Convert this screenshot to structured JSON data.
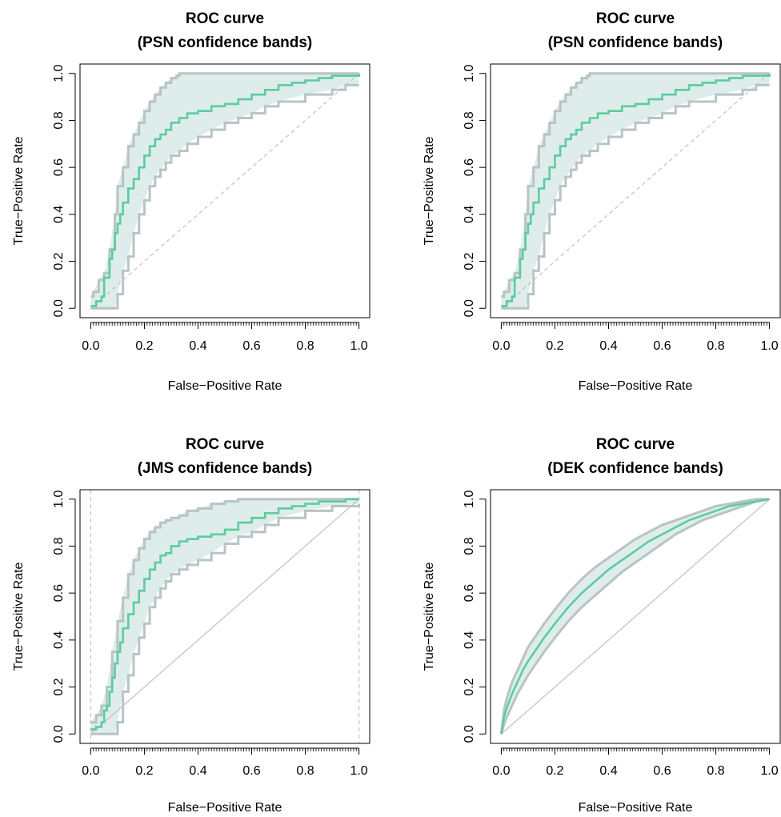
{
  "chart_data": [
    {
      "type": "line",
      "title": [
        "ROC curve",
        "(PSN confidence bands)"
      ],
      "xlabel": "False−Positive Rate",
      "ylabel": "True−Positive Rate",
      "xlim": [
        0,
        1
      ],
      "ylim": [
        0,
        1
      ],
      "xticks": [
        "0.0",
        "0.2",
        "0.4",
        "0.6",
        "0.8",
        "1.0"
      ],
      "yticks": [
        "0.0",
        "0.2",
        "0.4",
        "0.6",
        "0.8",
        "1.0"
      ],
      "diagonal_style": "dashed",
      "vertical_guides": [],
      "curve": {
        "x": [
          0,
          0.02,
          0.04,
          0.05,
          0.06,
          0.07,
          0.08,
          0.09,
          0.1,
          0.11,
          0.12,
          0.14,
          0.16,
          0.18,
          0.2,
          0.22,
          0.24,
          0.26,
          0.28,
          0.3,
          0.33,
          0.36,
          0.4,
          0.45,
          0.5,
          0.55,
          0.6,
          0.65,
          0.7,
          0.75,
          0.8,
          0.85,
          0.9,
          0.95,
          1.0
        ],
        "y": [
          0.01,
          0.03,
          0.05,
          0.13,
          0.13,
          0.21,
          0.25,
          0.32,
          0.36,
          0.4,
          0.45,
          0.51,
          0.55,
          0.6,
          0.65,
          0.69,
          0.72,
          0.74,
          0.76,
          0.79,
          0.81,
          0.83,
          0.84,
          0.86,
          0.87,
          0.89,
          0.91,
          0.93,
          0.95,
          0.96,
          0.97,
          0.98,
          0.99,
          0.99,
          1.0
        ]
      },
      "band_upper": {
        "x": [
          0,
          0.01,
          0.03,
          0.05,
          0.07,
          0.09,
          0.1,
          0.12,
          0.14,
          0.16,
          0.18,
          0.2,
          0.22,
          0.24,
          0.26,
          0.28,
          0.3,
          0.32,
          0.33,
          0.35,
          0.38,
          0.4,
          0.45,
          0.5,
          0.55,
          1.0
        ],
        "y": [
          0.05,
          0.07,
          0.12,
          0.15,
          0.25,
          0.4,
          0.52,
          0.6,
          0.69,
          0.74,
          0.79,
          0.84,
          0.88,
          0.91,
          0.94,
          0.96,
          0.98,
          0.99,
          1.0,
          1.0,
          1.0,
          1.0,
          1.0,
          1.0,
          1.0,
          1.0
        ]
      },
      "band_lower": {
        "x": [
          0,
          0.03,
          0.05,
          0.07,
          0.09,
          0.1,
          0.12,
          0.14,
          0.16,
          0.18,
          0.2,
          0.22,
          0.24,
          0.26,
          0.28,
          0.3,
          0.33,
          0.36,
          0.4,
          0.45,
          0.5,
          0.55,
          0.6,
          0.65,
          0.7,
          0.8,
          0.9,
          0.95,
          0.95,
          1.0
        ],
        "y": [
          0,
          0,
          0,
          0,
          0,
          0.06,
          0.16,
          0.22,
          0.32,
          0.4,
          0.46,
          0.52,
          0.56,
          0.59,
          0.62,
          0.65,
          0.67,
          0.7,
          0.73,
          0.76,
          0.79,
          0.81,
          0.83,
          0.86,
          0.88,
          0.91,
          0.93,
          0.95,
          0.95,
          0.95
        ]
      }
    },
    {
      "type": "line",
      "title": [
        "ROC curve",
        "(PSN confidence bands)"
      ],
      "xlabel": "False−Positive Rate",
      "ylabel": "True−Positive Rate",
      "xlim": [
        0,
        1
      ],
      "ylim": [
        0,
        1
      ],
      "xticks": [
        "0.0",
        "0.2",
        "0.4",
        "0.6",
        "0.8",
        "1.0"
      ],
      "yticks": [
        "0.0",
        "0.2",
        "0.4",
        "0.6",
        "0.8",
        "1.0"
      ],
      "diagonal_style": "dashed",
      "vertical_guides": [],
      "curve": {
        "x": [
          0,
          0.02,
          0.04,
          0.05,
          0.06,
          0.07,
          0.08,
          0.09,
          0.1,
          0.11,
          0.12,
          0.14,
          0.16,
          0.18,
          0.2,
          0.22,
          0.24,
          0.26,
          0.28,
          0.3,
          0.33,
          0.36,
          0.4,
          0.45,
          0.5,
          0.55,
          0.6,
          0.65,
          0.7,
          0.75,
          0.8,
          0.85,
          0.9,
          0.95,
          1.0
        ],
        "y": [
          0.01,
          0.03,
          0.05,
          0.13,
          0.13,
          0.21,
          0.25,
          0.32,
          0.36,
          0.4,
          0.45,
          0.51,
          0.55,
          0.6,
          0.65,
          0.69,
          0.72,
          0.74,
          0.76,
          0.79,
          0.81,
          0.83,
          0.84,
          0.86,
          0.87,
          0.89,
          0.91,
          0.93,
          0.95,
          0.96,
          0.97,
          0.98,
          0.99,
          0.99,
          1.0
        ]
      },
      "band_upper": {
        "x": [
          0,
          0.01,
          0.03,
          0.05,
          0.07,
          0.09,
          0.1,
          0.12,
          0.14,
          0.16,
          0.18,
          0.2,
          0.22,
          0.24,
          0.26,
          0.28,
          0.3,
          0.32,
          0.33,
          0.35,
          0.38,
          0.4,
          0.45,
          0.5,
          0.55,
          1.0
        ],
        "y": [
          0.05,
          0.07,
          0.12,
          0.15,
          0.25,
          0.4,
          0.52,
          0.6,
          0.69,
          0.74,
          0.79,
          0.84,
          0.88,
          0.91,
          0.94,
          0.96,
          0.98,
          0.99,
          1.0,
          1.0,
          1.0,
          1.0,
          1.0,
          1.0,
          1.0,
          1.0
        ]
      },
      "band_lower": {
        "x": [
          0,
          0.03,
          0.05,
          0.07,
          0.09,
          0.1,
          0.12,
          0.14,
          0.16,
          0.18,
          0.2,
          0.22,
          0.24,
          0.26,
          0.28,
          0.3,
          0.33,
          0.36,
          0.4,
          0.45,
          0.5,
          0.55,
          0.6,
          0.65,
          0.7,
          0.8,
          0.9,
          0.95,
          0.95,
          1.0
        ],
        "y": [
          0,
          0,
          0,
          0,
          0,
          0.06,
          0.16,
          0.22,
          0.32,
          0.4,
          0.46,
          0.52,
          0.56,
          0.59,
          0.62,
          0.65,
          0.67,
          0.7,
          0.73,
          0.76,
          0.79,
          0.81,
          0.83,
          0.86,
          0.88,
          0.91,
          0.93,
          0.95,
          0.95,
          0.95
        ]
      }
    },
    {
      "type": "line",
      "title": [
        "ROC curve",
        "(JMS confidence bands)"
      ],
      "xlabel": "False−Positive Rate",
      "ylabel": "True−Positive Rate",
      "xlim": [
        0,
        1
      ],
      "ylim": [
        0,
        1
      ],
      "xticks": [
        "0.0",
        "0.2",
        "0.4",
        "0.6",
        "0.8",
        "1.0"
      ],
      "yticks": [
        "0.0",
        "0.2",
        "0.4",
        "0.6",
        "0.8",
        "1.0"
      ],
      "diagonal_style": "solid",
      "vertical_guides": [
        0,
        1
      ],
      "curve": {
        "x": [
          0,
          0.02,
          0.04,
          0.05,
          0.06,
          0.07,
          0.08,
          0.09,
          0.1,
          0.11,
          0.12,
          0.14,
          0.16,
          0.18,
          0.2,
          0.22,
          0.24,
          0.26,
          0.28,
          0.3,
          0.33,
          0.36,
          0.4,
          0.45,
          0.5,
          0.55,
          0.6,
          0.65,
          0.7,
          0.75,
          0.8,
          0.85,
          0.9,
          0.95,
          1.0
        ],
        "y": [
          0.02,
          0.03,
          0.05,
          0.1,
          0.12,
          0.18,
          0.24,
          0.3,
          0.35,
          0.39,
          0.45,
          0.51,
          0.56,
          0.61,
          0.66,
          0.7,
          0.73,
          0.76,
          0.77,
          0.8,
          0.82,
          0.83,
          0.84,
          0.85,
          0.87,
          0.9,
          0.92,
          0.94,
          0.96,
          0.97,
          0.98,
          0.99,
          0.99,
          1.0,
          1.0
        ]
      },
      "band_upper": {
        "x": [
          0,
          0.02,
          0.04,
          0.06,
          0.08,
          0.1,
          0.12,
          0.14,
          0.16,
          0.18,
          0.2,
          0.22,
          0.24,
          0.26,
          0.28,
          0.3,
          0.33,
          0.36,
          0.4,
          0.45,
          0.5,
          0.55,
          0.6,
          0.7,
          0.8,
          0.9,
          1.0
        ],
        "y": [
          0.05,
          0.08,
          0.12,
          0.2,
          0.35,
          0.48,
          0.58,
          0.68,
          0.74,
          0.79,
          0.83,
          0.86,
          0.88,
          0.9,
          0.91,
          0.92,
          0.93,
          0.95,
          0.96,
          0.98,
          0.99,
          1.0,
          1.0,
          1.0,
          1.0,
          1.0,
          1.0
        ]
      },
      "band_lower": {
        "x": [
          0,
          0.02,
          0.04,
          0.06,
          0.09,
          0.1,
          0.12,
          0.14,
          0.16,
          0.18,
          0.2,
          0.22,
          0.24,
          0.26,
          0.28,
          0.3,
          0.33,
          0.36,
          0.4,
          0.45,
          0.5,
          0.55,
          0.6,
          0.65,
          0.7,
          0.8,
          0.9,
          1.0
        ],
        "y": [
          0,
          0,
          0,
          0,
          0,
          0.05,
          0.18,
          0.25,
          0.34,
          0.41,
          0.47,
          0.54,
          0.58,
          0.62,
          0.65,
          0.68,
          0.7,
          0.72,
          0.74,
          0.77,
          0.81,
          0.84,
          0.86,
          0.89,
          0.92,
          0.95,
          0.97,
          0.98
        ]
      }
    },
    {
      "type": "line",
      "title": [
        "ROC curve",
        "(DEK confidence bands)"
      ],
      "xlabel": "False−Positive Rate",
      "ylabel": "True−Positive Rate",
      "xlim": [
        0,
        1
      ],
      "ylim": [
        0,
        1
      ],
      "xticks": [
        "0.0",
        "0.2",
        "0.4",
        "0.6",
        "0.8",
        "1.0"
      ],
      "yticks": [
        "0.0",
        "0.2",
        "0.4",
        "0.6",
        "0.8",
        "1.0"
      ],
      "diagonal_style": "solid",
      "vertical_guides": [],
      "curve": {
        "x": [
          0,
          0.01,
          0.02,
          0.04,
          0.06,
          0.08,
          0.1,
          0.13,
          0.16,
          0.2,
          0.25,
          0.3,
          0.35,
          0.4,
          0.45,
          0.5,
          0.55,
          0.6,
          0.65,
          0.7,
          0.75,
          0.8,
          0.85,
          0.9,
          0.95,
          1.0
        ],
        "y": [
          0,
          0.07,
          0.11,
          0.17,
          0.22,
          0.27,
          0.31,
          0.36,
          0.41,
          0.47,
          0.54,
          0.6,
          0.65,
          0.7,
          0.74,
          0.78,
          0.82,
          0.85,
          0.88,
          0.91,
          0.93,
          0.95,
          0.97,
          0.98,
          0.99,
          1.0
        ]
      },
      "band_upper": {
        "x": [
          0,
          0.01,
          0.02,
          0.04,
          0.06,
          0.08,
          0.1,
          0.13,
          0.16,
          0.2,
          0.25,
          0.3,
          0.35,
          0.4,
          0.45,
          0.5,
          0.55,
          0.6,
          0.65,
          0.7,
          0.75,
          0.8,
          0.85,
          0.9,
          0.95,
          1.0
        ],
        "y": [
          0,
          0.1,
          0.15,
          0.22,
          0.27,
          0.32,
          0.37,
          0.42,
          0.47,
          0.53,
          0.6,
          0.66,
          0.71,
          0.75,
          0.79,
          0.83,
          0.86,
          0.89,
          0.91,
          0.93,
          0.95,
          0.97,
          0.98,
          0.99,
          1.0,
          1.0
        ]
      },
      "band_lower": {
        "x": [
          0,
          0.01,
          0.02,
          0.04,
          0.06,
          0.08,
          0.1,
          0.13,
          0.16,
          0.2,
          0.25,
          0.3,
          0.35,
          0.4,
          0.45,
          0.5,
          0.55,
          0.6,
          0.65,
          0.7,
          0.75,
          0.8,
          0.85,
          0.9,
          0.95,
          1.0
        ],
        "y": [
          0,
          0.04,
          0.07,
          0.12,
          0.17,
          0.21,
          0.25,
          0.3,
          0.35,
          0.41,
          0.48,
          0.54,
          0.59,
          0.64,
          0.69,
          0.73,
          0.77,
          0.81,
          0.85,
          0.88,
          0.91,
          0.93,
          0.95,
          0.97,
          0.99,
          1.0
        ]
      }
    }
  ],
  "colors": {
    "curve": "#5ccc9e",
    "band_fill": "#deedeb",
    "band_edge": "#b8c4c4",
    "diagonal": "#c0c0c0",
    "axis": "#000000"
  }
}
